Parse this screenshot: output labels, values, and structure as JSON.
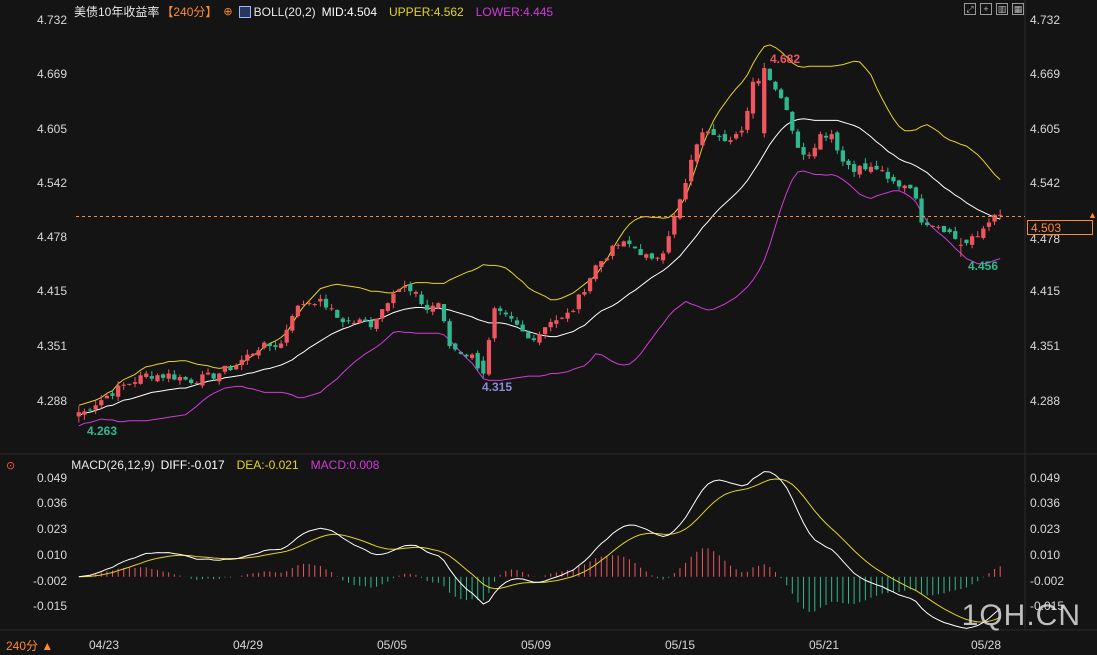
{
  "header": {
    "title": "美债10年收益率",
    "period_badge": "【240分】",
    "boll_label": "BOLL(20,2)",
    "mid": "MID:4.504",
    "upper": "UPPER:4.562",
    "lower": "LOWER:4.445",
    "macd_label": "MACD(26,12,9)",
    "diff": "DIFF:-0.017",
    "dea": "DEA:-0.021",
    "macd": "MACD:0.008",
    "period_footer": "240分 ▲"
  },
  "colors": {
    "up": "#f0555f",
    "down": "#2fb88e",
    "mid": "#ffffff",
    "upper": "#e3d520",
    "lower": "#d23bd8",
    "dea": "#e3d520",
    "diff": "#ffffff",
    "accent": "#ff8a30"
  },
  "current_price": "4.503",
  "annotations": {
    "high": "4.682",
    "low_start": "4.263",
    "low_mid": "4.315",
    "low_end": "4.456"
  },
  "watermark": "1QH.CN",
  "chart_data": [
    {
      "type": "candlestick",
      "title": "美债10年收益率",
      "y_ticks": [
        "4.732",
        "4.669",
        "4.605",
        "4.542",
        "4.478",
        "4.415",
        "4.351",
        "4.288"
      ],
      "ylim": [
        4.232,
        4.745
      ],
      "x_ticks": [
        "04/23",
        "04/29",
        "05/05",
        "05/09",
        "05/15",
        "05/21",
        "05/28"
      ],
      "current": 4.503,
      "candles": [],
      "mid": [],
      "upper": [],
      "lower": []
    },
    {
      "type": "macd",
      "y_ticks": [
        "0.049",
        "0.036",
        "0.023",
        "0.010",
        "-0.002",
        "-0.015"
      ],
      "ylim": [
        -0.03,
        0.052
      ],
      "diff": [],
      "dea": [],
      "hist": []
    }
  ]
}
